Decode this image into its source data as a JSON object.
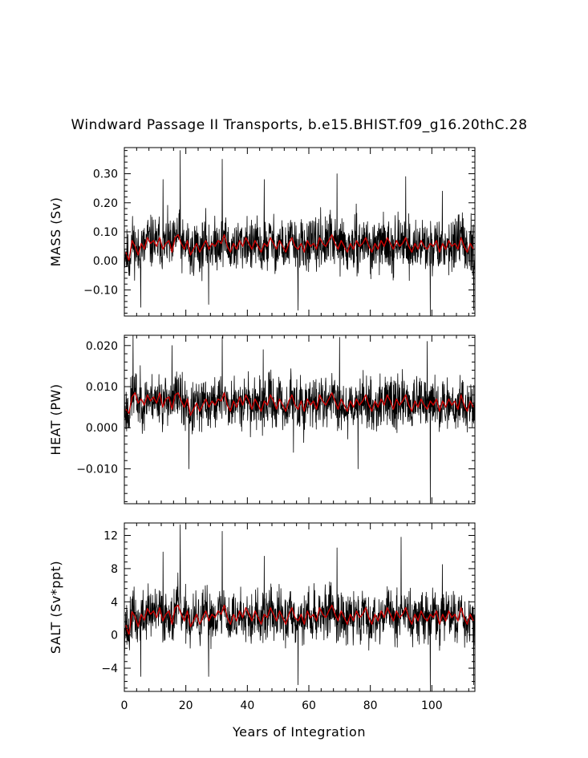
{
  "figure": {
    "title": "Windward Passage II Transports, b.e15.BHIST.f09_g16.20thC.28",
    "xlabel": "Years of Integration"
  },
  "chart_data": [
    {
      "type": "line",
      "panel": "top",
      "ylabel": "MASS (Sv)",
      "xlim": [
        0,
        114
      ],
      "ylim": [
        -0.19,
        0.39
      ],
      "xticks": [
        0,
        20,
        40,
        60,
        80,
        100
      ],
      "yticks": [
        -0.1,
        0.0,
        0.1,
        0.2,
        0.3
      ],
      "ytick_labels": [
        "−0.10",
        "0.00",
        "0.10",
        "0.20",
        "0.30"
      ],
      "series": [
        {
          "color": "#000000",
          "style": "monthly",
          "seed": 11,
          "noise": 0.055,
          "spikes": [
            [
              18.2,
              0.38
            ],
            [
              31.8,
              0.35
            ],
            [
              12.6,
              0.28
            ],
            [
              69.2,
              0.3
            ],
            [
              91.5,
              0.29
            ],
            [
              56.5,
              -0.17
            ],
            [
              99.5,
              -0.19
            ],
            [
              113.6,
              -0.17
            ],
            [
              5.3,
              -0.16
            ],
            [
              27.4,
              -0.15
            ],
            [
              45.5,
              0.28
            ],
            [
              103.4,
              0.24
            ]
          ]
        },
        {
          "color": "#cc0000",
          "style": "annual",
          "x": [
            0.5,
            1.5,
            2.5,
            3.5,
            4.5,
            5.5,
            6.5,
            7.5,
            8.5,
            9.5,
            10.5,
            11.5,
            12.5,
            13.5,
            14.5,
            15.5,
            16.5,
            17.5,
            18.5,
            19.5,
            20.5,
            21.5,
            22.5,
            23.5,
            24.5,
            25.5,
            26.5,
            27.5,
            28.5,
            29.5,
            30.5,
            31.5,
            32.5,
            33.5,
            34.5,
            35.5,
            36.5,
            37.5,
            38.5,
            39.5,
            40.5,
            41.5,
            42.5,
            43.5,
            44.5,
            45.5,
            46.5,
            47.5,
            48.5,
            49.5,
            50.5,
            51.5,
            52.5,
            53.5,
            54.5,
            55.5,
            56.5,
            57.5,
            58.5,
            59.5,
            60.5,
            61.5,
            62.5,
            63.5,
            64.5,
            65.5,
            66.5,
            67.5,
            68.5,
            69.5,
            70.5,
            71.5,
            72.5,
            73.5,
            74.5,
            75.5,
            76.5,
            77.5,
            78.5,
            79.5,
            80.5,
            81.5,
            82.5,
            83.5,
            84.5,
            85.5,
            86.5,
            87.5,
            88.5,
            89.5,
            90.5,
            91.5,
            92.5,
            93.5,
            94.5,
            95.5,
            96.5,
            97.5,
            98.5,
            99.5,
            100.5,
            101.5,
            102.5,
            103.5,
            104.5,
            105.5,
            106.5,
            107.5,
            108.5,
            109.5,
            110.5,
            111.5,
            112.5,
            113.5
          ],
          "values": [
            0.03,
            0.0,
            0.07,
            0.05,
            0.02,
            0.06,
            0.04,
            0.08,
            0.06,
            0.07,
            0.05,
            0.08,
            0.04,
            0.06,
            0.07,
            0.03,
            0.08,
            0.09,
            0.06,
            0.04,
            0.07,
            0.02,
            0.04,
            0.06,
            0.03,
            0.05,
            0.07,
            0.04,
            0.06,
            0.05,
            0.07,
            0.06,
            0.09,
            0.05,
            0.03,
            0.06,
            0.04,
            0.07,
            0.05,
            0.08,
            0.06,
            0.04,
            0.07,
            0.05,
            0.03,
            0.06,
            0.05,
            0.08,
            0.06,
            0.04,
            0.07,
            0.05,
            0.03,
            0.06,
            0.08,
            0.05,
            0.04,
            0.06,
            0.03,
            0.07,
            0.05,
            0.06,
            0.04,
            0.08,
            0.06,
            0.05,
            0.07,
            0.09,
            0.06,
            0.04,
            0.07,
            0.05,
            0.03,
            0.06,
            0.04,
            0.07,
            0.05,
            0.06,
            0.08,
            0.05,
            0.03,
            0.06,
            0.04,
            0.07,
            0.05,
            0.08,
            0.06,
            0.04,
            0.07,
            0.05,
            0.06,
            0.08,
            0.05,
            0.03,
            0.06,
            0.04,
            0.07,
            0.05,
            0.04,
            0.06,
            0.05,
            0.07,
            0.03,
            0.06,
            0.04,
            0.07,
            0.05,
            0.06,
            0.04,
            0.08,
            0.05,
            0.03,
            0.06,
            0.04
          ]
        }
      ]
    },
    {
      "type": "line",
      "panel": "middle",
      "ylabel": "HEAT (PW)",
      "xlim": [
        0,
        114
      ],
      "ylim": [
        -0.0185,
        0.0225
      ],
      "xticks": [
        0,
        20,
        40,
        60,
        80,
        100
      ],
      "yticks": [
        -0.01,
        0.0,
        0.01,
        0.02
      ],
      "ytick_labels": [
        "−0.010",
        "0.000",
        "0.010",
        "0.020"
      ],
      "series": [
        {
          "color": "#000000",
          "style": "monthly",
          "seed": 23,
          "noise": 0.0038,
          "spikes": [
            [
              2.8,
              0.023
            ],
            [
              31.8,
              0.022
            ],
            [
              70.0,
              0.022
            ],
            [
              98.5,
              0.021
            ],
            [
              21.0,
              -0.01
            ],
            [
              99.5,
              -0.0185
            ],
            [
              76.0,
              -0.01
            ],
            [
              55.0,
              -0.006
            ],
            [
              15.5,
              0.02
            ],
            [
              45.2,
              0.019
            ]
          ]
        },
        {
          "color": "#cc0000",
          "style": "annual",
          "x": [
            0.5,
            1.5,
            2.5,
            3.5,
            4.5,
            5.5,
            6.5,
            7.5,
            8.5,
            9.5,
            10.5,
            11.5,
            12.5,
            13.5,
            14.5,
            15.5,
            16.5,
            17.5,
            18.5,
            19.5,
            20.5,
            21.5,
            22.5,
            23.5,
            24.5,
            25.5,
            26.5,
            27.5,
            28.5,
            29.5,
            30.5,
            31.5,
            32.5,
            33.5,
            34.5,
            35.5,
            36.5,
            37.5,
            38.5,
            39.5,
            40.5,
            41.5,
            42.5,
            43.5,
            44.5,
            45.5,
            46.5,
            47.5,
            48.5,
            49.5,
            50.5,
            51.5,
            52.5,
            53.5,
            54.5,
            55.5,
            56.5,
            57.5,
            58.5,
            59.5,
            60.5,
            61.5,
            62.5,
            63.5,
            64.5,
            65.5,
            66.5,
            67.5,
            68.5,
            69.5,
            70.5,
            71.5,
            72.5,
            73.5,
            74.5,
            75.5,
            76.5,
            77.5,
            78.5,
            79.5,
            80.5,
            81.5,
            82.5,
            83.5,
            84.5,
            85.5,
            86.5,
            87.5,
            88.5,
            89.5,
            90.5,
            91.5,
            92.5,
            93.5,
            94.5,
            95.5,
            96.5,
            97.5,
            98.5,
            99.5,
            100.5,
            101.5,
            102.5,
            103.5,
            104.5,
            105.5,
            106.5,
            107.5,
            108.5,
            109.5,
            110.5,
            111.5,
            112.5,
            113.5
          ],
          "values": [
            0.0045,
            0.0035,
            0.0075,
            0.0085,
            0.006,
            0.007,
            0.0055,
            0.008,
            0.0065,
            0.0075,
            0.006,
            0.0085,
            0.005,
            0.007,
            0.0075,
            0.0045,
            0.008,
            0.0085,
            0.0065,
            0.005,
            0.007,
            0.003,
            0.0045,
            0.006,
            0.004,
            0.0055,
            0.007,
            0.005,
            0.0065,
            0.0055,
            0.007,
            0.0065,
            0.0085,
            0.0055,
            0.004,
            0.0065,
            0.005,
            0.0075,
            0.0055,
            0.008,
            0.0065,
            0.0045,
            0.007,
            0.0055,
            0.004,
            0.0065,
            0.0055,
            0.008,
            0.0065,
            0.0045,
            0.007,
            0.0055,
            0.004,
            0.0065,
            0.008,
            0.0055,
            0.0045,
            0.0065,
            0.004,
            0.007,
            0.0055,
            0.0065,
            0.0045,
            0.008,
            0.0065,
            0.0055,
            0.007,
            0.0085,
            0.0065,
            0.0045,
            0.007,
            0.0055,
            0.004,
            0.0065,
            0.005,
            0.007,
            0.0055,
            0.0065,
            0.008,
            0.0055,
            0.004,
            0.0065,
            0.005,
            0.007,
            0.0055,
            0.008,
            0.0065,
            0.0045,
            0.007,
            0.0055,
            0.0065,
            0.008,
            0.0055,
            0.004,
            0.0065,
            0.005,
            0.007,
            0.0055,
            0.0045,
            0.0065,
            0.0055,
            0.007,
            0.004,
            0.0065,
            0.005,
            0.007,
            0.0055,
            0.0065,
            0.0045,
            0.008,
            0.0055,
            0.004,
            0.0065,
            0.005
          ]
        }
      ]
    },
    {
      "type": "line",
      "panel": "bottom",
      "ylabel": "SALT (Sv*ppt)",
      "xlim": [
        0,
        114
      ],
      "ylim": [
        -6.8,
        13.5
      ],
      "xticks": [
        0,
        20,
        40,
        60,
        80,
        100
      ],
      "xtick_labels": [
        "0",
        "20",
        "40",
        "60",
        "80",
        "100"
      ],
      "yticks": [
        -4,
        0,
        4,
        8,
        12
      ],
      "ytick_labels": [
        "−4",
        "0",
        "4",
        "8",
        "12"
      ],
      "series": [
        {
          "color": "#000000",
          "style": "monthly",
          "seed": 37,
          "noise": 1.9,
          "spikes": [
            [
              18.2,
              13.3
            ],
            [
              31.8,
              12.5
            ],
            [
              90.0,
              11.8
            ],
            [
              12.6,
              10.0
            ],
            [
              69.2,
              10.5
            ],
            [
              56.5,
              -6.0
            ],
            [
              99.5,
              -6.8
            ],
            [
              113.6,
              -6.0
            ],
            [
              5.3,
              -5.0
            ],
            [
              27.4,
              -5.0
            ],
            [
              45.5,
              9.5
            ],
            [
              103.4,
              8.5
            ]
          ]
        },
        {
          "color": "#cc0000",
          "style": "annual",
          "x": [
            0.5,
            1.5,
            2.5,
            3.5,
            4.5,
            5.5,
            6.5,
            7.5,
            8.5,
            9.5,
            10.5,
            11.5,
            12.5,
            13.5,
            14.5,
            15.5,
            16.5,
            17.5,
            18.5,
            19.5,
            20.5,
            21.5,
            22.5,
            23.5,
            24.5,
            25.5,
            26.5,
            27.5,
            28.5,
            29.5,
            30.5,
            31.5,
            32.5,
            33.5,
            34.5,
            35.5,
            36.5,
            37.5,
            38.5,
            39.5,
            40.5,
            41.5,
            42.5,
            43.5,
            44.5,
            45.5,
            46.5,
            47.5,
            48.5,
            49.5,
            50.5,
            51.5,
            52.5,
            53.5,
            54.5,
            55.5,
            56.5,
            57.5,
            58.5,
            59.5,
            60.5,
            61.5,
            62.5,
            63.5,
            64.5,
            65.5,
            66.5,
            67.5,
            68.5,
            69.5,
            70.5,
            71.5,
            72.5,
            73.5,
            74.5,
            75.5,
            76.5,
            77.5,
            78.5,
            79.5,
            80.5,
            81.5,
            82.5,
            83.5,
            84.5,
            85.5,
            86.5,
            87.5,
            88.5,
            89.5,
            90.5,
            91.5,
            92.5,
            93.5,
            94.5,
            95.5,
            96.5,
            97.5,
            98.5,
            99.5,
            100.5,
            101.5,
            102.5,
            103.5,
            104.5,
            105.5,
            106.5,
            107.5,
            108.5,
            109.5,
            110.5,
            111.5,
            112.5,
            113.5
          ],
          "values": [
            1.2,
            0.0,
            2.8,
            2.2,
            1.0,
            2.5,
            1.8,
            3.2,
            2.5,
            2.9,
            2.1,
            3.3,
            1.7,
            2.5,
            2.9,
            1.3,
            3.3,
            3.6,
            2.5,
            1.7,
            2.9,
            1.0,
            1.7,
            2.5,
            1.3,
            2.1,
            2.9,
            1.7,
            2.5,
            2.1,
            2.9,
            2.5,
            3.6,
            2.1,
            1.3,
            2.5,
            1.7,
            2.9,
            2.1,
            3.3,
            2.5,
            1.7,
            2.9,
            2.1,
            1.3,
            2.5,
            2.1,
            3.3,
            2.5,
            1.7,
            2.9,
            2.1,
            1.3,
            2.5,
            3.3,
            2.1,
            1.7,
            2.5,
            1.3,
            2.9,
            2.1,
            2.5,
            1.7,
            3.3,
            2.5,
            2.1,
            2.9,
            3.6,
            2.5,
            1.7,
            2.9,
            2.1,
            1.3,
            2.5,
            1.7,
            2.9,
            2.1,
            2.5,
            3.3,
            2.1,
            1.3,
            2.5,
            1.7,
            2.9,
            2.1,
            3.3,
            2.5,
            1.7,
            2.9,
            2.1,
            2.5,
            3.3,
            2.1,
            1.3,
            2.5,
            1.7,
            2.9,
            2.1,
            1.7,
            2.5,
            2.1,
            2.9,
            1.3,
            2.5,
            1.7,
            2.9,
            2.1,
            2.5,
            1.7,
            3.3,
            2.1,
            1.3,
            2.5,
            1.7
          ]
        }
      ]
    }
  ]
}
